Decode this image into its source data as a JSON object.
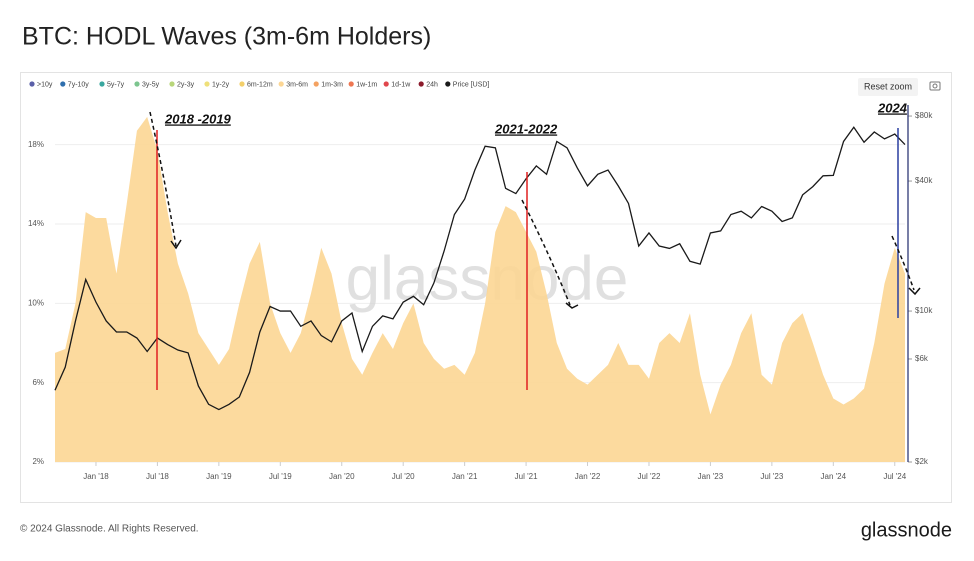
{
  "title": "BTC: HODL Waves (3m-6m Holders)",
  "reset_zoom": "Reset zoom",
  "footer": {
    "copyright": "© 2024 Glassnode. All Rights Reserved.",
    "logo": "glassnode"
  },
  "chart_data": {
    "type": "area",
    "watermark": "glassnode",
    "legend": [
      {
        "name": ">10y",
        "color": "#5a5fa8"
      },
      {
        "name": "7y-10y",
        "color": "#2f6fae"
      },
      {
        "name": "5y-7y",
        "color": "#3aa79f"
      },
      {
        "name": "3y-5y",
        "color": "#7cc58f"
      },
      {
        "name": "2y-3y",
        "color": "#b8d67a"
      },
      {
        "name": "1y-2y",
        "color": "#efe07a"
      },
      {
        "name": "6m-12m",
        "color": "#f3cf6a"
      },
      {
        "name": "1m-3m",
        "color": "#f4a261"
      },
      {
        "name": "1w-1m",
        "color": "#ee7752"
      },
      {
        "name": "1d-1w",
        "color": "#e0474c"
      },
      {
        "name": "24h",
        "color": "#8b1a2b"
      }
    ],
    "categories": [
      null,
      null,
      null,
      null,
      "Jan '18",
      null,
      null,
      null,
      null,
      null,
      "Jul '18",
      null,
      null,
      null,
      null,
      null,
      "Jan '19",
      null,
      null,
      null,
      null,
      null,
      "Jul '19",
      null,
      null,
      null,
      null,
      null,
      "Jan '20",
      null,
      null,
      null,
      null,
      null,
      "Jul '20",
      null,
      null,
      null,
      null,
      null,
      "Jan '21",
      null,
      null,
      null,
      null,
      null,
      "Jul '21",
      null,
      null,
      null,
      null,
      null,
      "Jan '22",
      null,
      null,
      null,
      null,
      null,
      "Jul '22",
      null,
      null,
      null,
      null,
      null,
      "Jan '23",
      null,
      null,
      null,
      null,
      null,
      "Jul '23",
      null,
      null,
      null,
      null,
      null,
      "Jan '24",
      null,
      null,
      null,
      null,
      null,
      "Jul '24",
      null
    ],
    "series": [
      {
        "name": "3m-6m",
        "type": "area",
        "color": "#fcd694",
        "values": [
          7.5,
          7.7,
          10,
          14.6,
          14.3,
          14.3,
          11.5,
          15,
          18.7,
          19.4,
          17.7,
          14.6,
          12,
          10.5,
          8.5,
          7.7,
          6.9,
          7.7,
          10,
          12,
          13.1,
          10,
          8.5,
          7.5,
          8.5,
          10.5,
          12.8,
          11.5,
          9,
          7.2,
          6.4,
          7.5,
          8.5,
          7.7,
          9,
          10,
          8,
          7.2,
          6.7,
          6.9,
          6.4,
          7.5,
          10,
          13.6,
          14.9,
          14.6,
          13.6,
          12.6,
          10.5,
          8,
          6.7,
          6.2,
          5.9,
          6.4,
          6.9,
          8,
          6.9,
          6.9,
          6.2,
          8,
          8.5,
          8,
          9.5,
          6.4,
          4.4,
          5.9,
          6.9,
          8.5,
          9.5,
          6.4,
          5.9,
          8,
          9,
          9.5,
          8,
          6.4,
          5.2,
          4.9,
          5.2,
          5.7,
          8,
          11,
          12.8,
          11.5
        ]
      },
      {
        "name": "Price [USD]",
        "type": "line",
        "axis": "y2",
        "color": "#1a1a1a",
        "values": [
          4300,
          5500,
          9000,
          14000,
          11000,
          9000,
          8000,
          8000,
          7500,
          6500,
          7500,
          7000,
          6600,
          6400,
          4500,
          3700,
          3500,
          3700,
          4000,
          5200,
          8000,
          10500,
          10000,
          10000,
          8500,
          9000,
          7700,
          7200,
          9000,
          9800,
          6500,
          8500,
          9500,
          9200,
          11000,
          11700,
          10700,
          13500,
          19000,
          28000,
          33000,
          45000,
          58000,
          57000,
          37000,
          35000,
          41000,
          47000,
          43000,
          61000,
          57000,
          46000,
          38000,
          43000,
          45000,
          38000,
          31500,
          20000,
          23000,
          20000,
          19500,
          20500,
          17000,
          16500,
          23000,
          23500,
          28000,
          29000,
          27000,
          30500,
          29000,
          26000,
          27000,
          34500,
          37700,
          42300,
          42500,
          61000,
          71000,
          60500,
          67500,
          62700,
          66000,
          59000
        ]
      }
    ],
    "ylim": [
      2,
      20
    ],
    "yticks": [
      {
        "value": 2,
        "label": "2%"
      },
      {
        "value": 6,
        "label": "6%"
      },
      {
        "value": 10,
        "label": "10%"
      },
      {
        "value": 14,
        "label": "14%"
      },
      {
        "value": 18,
        "label": "18%"
      }
    ],
    "y2lim": [
      2000,
      90000
    ],
    "y2scale": "log",
    "y2ticks": [
      {
        "value": 2000,
        "label": "$2k"
      },
      {
        "value": 6000,
        "label": "$6k"
      },
      {
        "value": 10000,
        "label": "$10k"
      },
      {
        "value": 40000,
        "label": "$40k"
      },
      {
        "value": 80000,
        "label": "$80k"
      }
    ],
    "grid": true,
    "annotations": [
      {
        "text": "2018 -2019"
      },
      {
        "text": "2021-2022"
      },
      {
        "text": "2024"
      }
    ]
  }
}
